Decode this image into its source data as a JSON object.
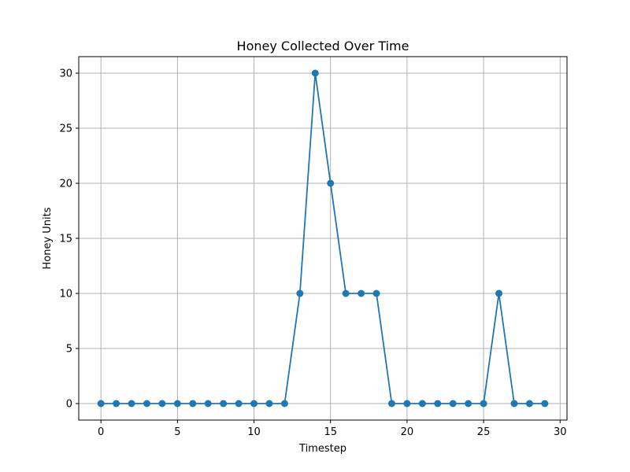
{
  "chart_data": {
    "type": "line",
    "title": "Honey Collected Over Time",
    "xlabel": "Timestep",
    "ylabel": "Honey Units",
    "xlim": [
      -1.45,
      30.45
    ],
    "ylim": [
      -1.5,
      31.5
    ],
    "xticks": [
      0,
      5,
      10,
      15,
      20,
      25,
      30
    ],
    "yticks": [
      0,
      5,
      10,
      15,
      20,
      25,
      30
    ],
    "grid": true,
    "series": [
      {
        "color": "#1f77b4",
        "marker": "circle",
        "x": [
          0,
          1,
          2,
          3,
          4,
          5,
          6,
          7,
          8,
          9,
          10,
          11,
          12,
          13,
          14,
          15,
          16,
          17,
          18,
          19,
          20,
          21,
          22,
          23,
          24,
          25,
          26,
          27,
          28,
          29
        ],
        "y": [
          0,
          0,
          0,
          0,
          0,
          0,
          0,
          0,
          0,
          0,
          0,
          0,
          0,
          10,
          30,
          20,
          10,
          10,
          10,
          0,
          0,
          0,
          0,
          0,
          0,
          0,
          10,
          0,
          0,
          0
        ]
      }
    ]
  }
}
